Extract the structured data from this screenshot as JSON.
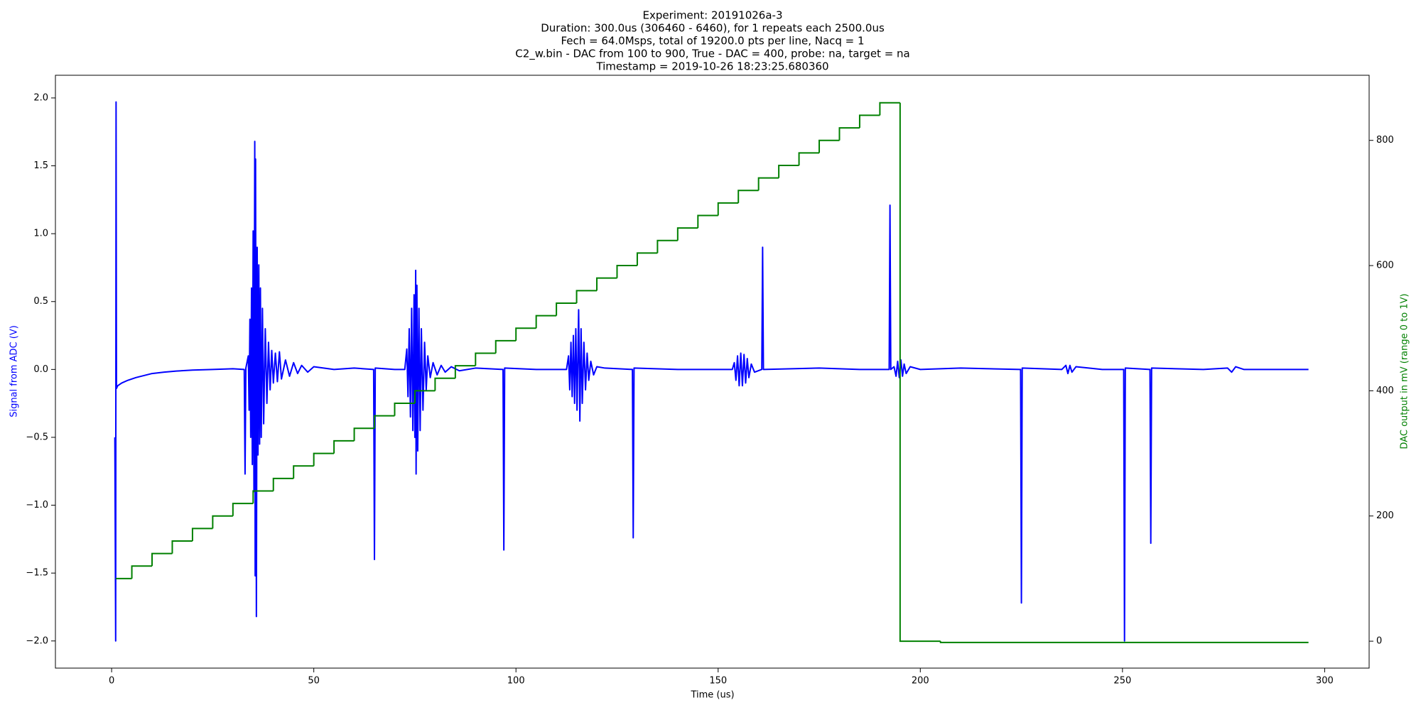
{
  "chart_data": {
    "type": "line",
    "title": [
      "Experiment: 20191026a-3",
      "Duration: 300.0us (306460 - 6460), for 1 repeats each 2500.0us",
      "Fech = 64.0Msps, total of 19200.0 pts per line, Nacq = 1",
      "C2_w.bin - DAC from 100 to 900, True - DAC = 400, probe: na, target = na",
      "Timestamp = 2019-10-26 18:23:25.680360"
    ],
    "xlabel": "Time (us)",
    "ylabel": "Signal from ADC (V)",
    "y2label": "DAC output in mV (range 0 to 1V)",
    "xlim": [
      -13.9,
      311
    ],
    "ylim": [
      -2.2,
      2.167
    ],
    "y2lim": [
      -43,
      904
    ],
    "xticks": [
      0,
      50,
      100,
      150,
      200,
      250,
      300
    ],
    "yticks": [
      {
        "value": -2,
        "label": "−2.0"
      },
      {
        "value": -1.5,
        "label": "−1.5"
      },
      {
        "value": -1,
        "label": "−1.0"
      },
      {
        "value": -0.5,
        "label": "−0.5"
      },
      {
        "value": 0,
        "label": "0.0"
      },
      {
        "value": 0.5,
        "label": "0.5"
      },
      {
        "value": 1,
        "label": "1.0"
      },
      {
        "value": 1.5,
        "label": "1.5"
      },
      {
        "value": 2,
        "label": "2.0"
      }
    ],
    "y2ticks": [
      0,
      200,
      400,
      600,
      800
    ],
    "grid": false,
    "series": [
      {
        "color": "#0000ff",
        "axis": "y",
        "x": [
          0.8,
          1.0,
          1.1,
          1.2,
          1.5,
          2.5,
          4,
          6,
          8,
          10,
          13,
          16,
          20,
          25,
          30,
          32.8,
          33.0,
          33.2,
          33.8,
          34.0,
          34.2,
          34.4,
          34.6,
          34.8,
          35.0,
          35.2,
          35.4,
          35.5,
          35.6,
          35.8,
          36.0,
          36.2,
          36.4,
          36.6,
          36.8,
          37.0,
          37.3,
          37.6,
          38.0,
          38.4,
          38.8,
          39.2,
          39.6,
          40.0,
          40.5,
          41.0,
          41.5,
          42.0,
          43,
          44,
          45,
          46,
          47,
          48.5,
          50,
          55,
          60,
          64.8,
          65.0,
          65.2,
          70,
          72.5,
          73.0,
          73.3,
          73.6,
          73.9,
          74.2,
          74.5,
          74.8,
          75.0,
          75.2,
          75.3,
          75.5,
          75.7,
          76.0,
          76.3,
          76.6,
          77.0,
          77.4,
          77.8,
          78.2,
          78.8,
          79.5,
          80.5,
          81.5,
          82.5,
          84,
          86,
          90,
          96.8,
          97.0,
          97.2,
          105,
          112.5,
          113.0,
          113.3,
          113.6,
          113.9,
          114.2,
          114.5,
          114.8,
          115.1,
          115.5,
          115.8,
          116.1,
          116.4,
          116.8,
          117.2,
          117.6,
          118.0,
          118.5,
          119.2,
          120,
          122,
          128.8,
          129.0,
          129.2,
          140,
          153.5,
          154.0,
          154.4,
          154.8,
          155.2,
          155.6,
          156.0,
          156.4,
          156.8,
          157.2,
          157.6,
          158.2,
          159,
          160.8,
          161.0,
          161.2,
          175,
          185,
          192.3,
          192.5,
          192.7,
          193.5,
          194.0,
          194.4,
          194.8,
          195.2,
          195.6,
          196.0,
          196.5,
          197.5,
          200,
          210,
          224.8,
          225.0,
          225.2,
          235,
          236,
          236.5,
          237,
          237.5,
          238.5,
          245,
          250.3,
          250.5,
          250.7,
          256.8,
          257.0,
          257.2,
          270,
          276,
          277,
          278,
          280,
          296
        ],
        "values": [
          -0.5,
          -2.0,
          1.97,
          -0.14,
          -0.12,
          -0.1,
          -0.08,
          -0.06,
          -0.045,
          -0.03,
          -0.02,
          -0.012,
          -0.005,
          0,
          0.005,
          0,
          -0.77,
          0.01,
          0.1,
          -0.3,
          0.37,
          -0.5,
          0.6,
          -0.7,
          1.02,
          -0.9,
          1.68,
          -1.52,
          1.55,
          -1.82,
          0.9,
          -0.63,
          0.77,
          -0.55,
          0.6,
          -0.5,
          0.45,
          -0.4,
          0.3,
          -0.25,
          0.2,
          -0.15,
          0.14,
          -0.1,
          0.12,
          -0.09,
          0.13,
          -0.07,
          0.07,
          -0.05,
          0.05,
          -0.03,
          0.03,
          -0.02,
          0.02,
          0,
          0.01,
          0,
          -1.4,
          0.01,
          0,
          0,
          0.15,
          -0.2,
          0.3,
          -0.35,
          0.45,
          -0.45,
          0.55,
          -0.5,
          0.73,
          -0.77,
          0.62,
          -0.6,
          0.45,
          -0.45,
          0.3,
          -0.3,
          0.2,
          -0.15,
          0.1,
          -0.06,
          0.05,
          -0.04,
          0.03,
          -0.02,
          0.02,
          -0.01,
          0.01,
          0,
          -1.33,
          0.01,
          0,
          0,
          0.1,
          -0.15,
          0.2,
          -0.2,
          0.25,
          -0.25,
          0.3,
          -0.3,
          0.44,
          -0.38,
          0.3,
          -0.25,
          0.2,
          -0.15,
          0.12,
          -0.08,
          0.06,
          -0.04,
          0.02,
          0.01,
          0,
          -1.24,
          0.01,
          0,
          0,
          0.05,
          -0.08,
          0.1,
          -0.12,
          0.12,
          -0.12,
          0.11,
          -0.1,
          0.08,
          -0.06,
          0.04,
          -0.02,
          0,
          0.9,
          0,
          0.01,
          0,
          0,
          1.21,
          0,
          0.02,
          -0.05,
          0.06,
          -0.06,
          0.07,
          -0.05,
          0.04,
          -0.03,
          0.02,
          0,
          0.01,
          0,
          -1.72,
          0.01,
          0,
          0.03,
          -0.03,
          0.03,
          -0.02,
          0.02,
          0,
          0,
          -2.0,
          0.01,
          0,
          -1.28,
          0.01,
          0,
          0.01,
          -0.02,
          0.02,
          0,
          0
        ]
      },
      {
        "color": "#008000",
        "axis": "y2",
        "drawstyle": "steps-post",
        "x": [
          1,
          5,
          10,
          15,
          20,
          25,
          30,
          35,
          40,
          45,
          50,
          55,
          60,
          65,
          70,
          75,
          80,
          85,
          90,
          95,
          100,
          105,
          110,
          115,
          120,
          125,
          130,
          135,
          140,
          145,
          150,
          155,
          160,
          165,
          170,
          175,
          180,
          185,
          190,
          195,
          205,
          296
        ],
        "values": [
          100,
          120,
          140,
          160,
          180,
          200,
          220,
          240,
          260,
          280,
          300,
          320,
          340,
          360,
          380,
          400,
          420,
          440,
          460,
          480,
          500,
          520,
          540,
          560,
          580,
          600,
          620,
          640,
          660,
          680,
          700,
          720,
          740,
          760,
          780,
          800,
          820,
          840,
          860,
          0,
          -2,
          -2
        ]
      }
    ]
  }
}
